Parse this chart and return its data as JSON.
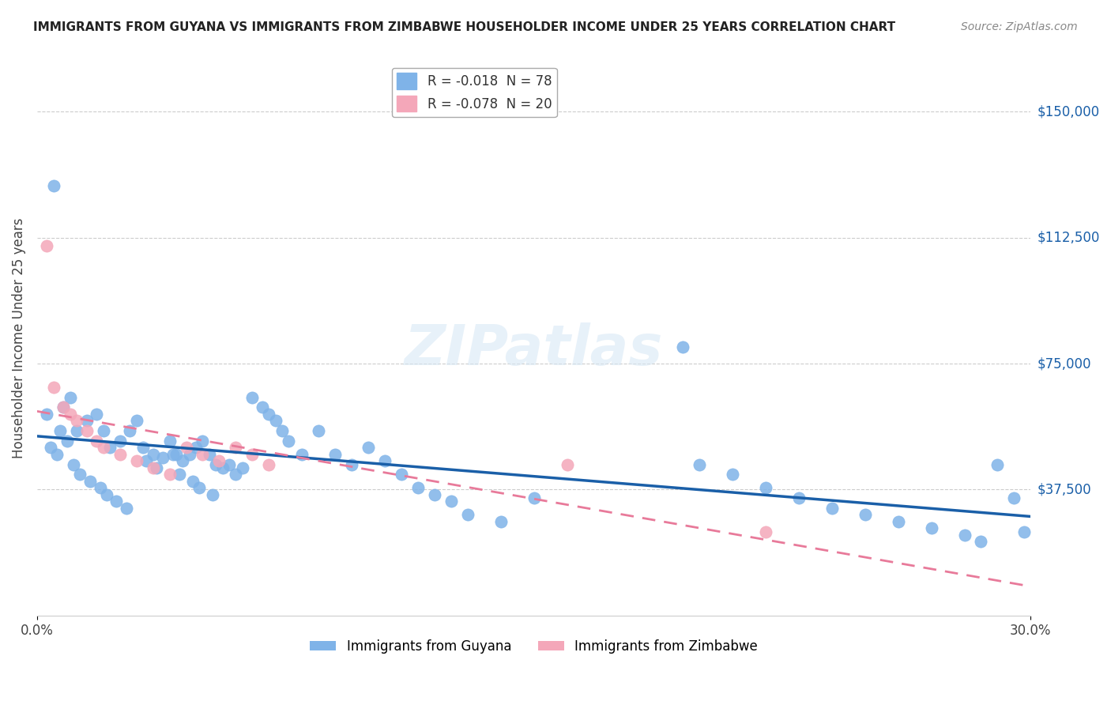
{
  "title": "IMMIGRANTS FROM GUYANA VS IMMIGRANTS FROM ZIMBABWE HOUSEHOLDER INCOME UNDER 25 YEARS CORRELATION CHART",
  "source": "Source: ZipAtlas.com",
  "ylabel": "Householder Income Under 25 years",
  "xlim": [
    0,
    0.3
  ],
  "ylim": [
    0,
    165000
  ],
  "guyana_R": -0.018,
  "guyana_N": 78,
  "zimbabwe_R": -0.078,
  "zimbabwe_N": 20,
  "guyana_color": "#7fb3e8",
  "zimbabwe_color": "#f4a7b9",
  "guyana_line_color": "#1a5fa8",
  "zimbabwe_line_color": "#e87a9a",
  "background_color": "#ffffff",
  "guyana_x": [
    0.005,
    0.008,
    0.01,
    0.012,
    0.015,
    0.018,
    0.02,
    0.022,
    0.025,
    0.028,
    0.03,
    0.032,
    0.035,
    0.038,
    0.04,
    0.042,
    0.044,
    0.046,
    0.048,
    0.05,
    0.052,
    0.054,
    0.056,
    0.058,
    0.06,
    0.062,
    0.065,
    0.068,
    0.07,
    0.072,
    0.074,
    0.076,
    0.08,
    0.085,
    0.09,
    0.095,
    0.1,
    0.105,
    0.11,
    0.115,
    0.12,
    0.125,
    0.13,
    0.14,
    0.15,
    0.195,
    0.2,
    0.21,
    0.22,
    0.23,
    0.24,
    0.25,
    0.26,
    0.27,
    0.28,
    0.285,
    0.29,
    0.295,
    0.298,
    0.003,
    0.004,
    0.006,
    0.007,
    0.009,
    0.011,
    0.013,
    0.016,
    0.019,
    0.021,
    0.024,
    0.027,
    0.033,
    0.036,
    0.041,
    0.043,
    0.047,
    0.049,
    0.053
  ],
  "guyana_y": [
    128000,
    62000,
    65000,
    55000,
    58000,
    60000,
    55000,
    50000,
    52000,
    55000,
    58000,
    50000,
    48000,
    47000,
    52000,
    48000,
    46000,
    48000,
    50000,
    52000,
    48000,
    45000,
    44000,
    45000,
    42000,
    44000,
    65000,
    62000,
    60000,
    58000,
    55000,
    52000,
    48000,
    55000,
    48000,
    45000,
    50000,
    46000,
    42000,
    38000,
    36000,
    34000,
    30000,
    28000,
    35000,
    80000,
    45000,
    42000,
    38000,
    35000,
    32000,
    30000,
    28000,
    26000,
    24000,
    22000,
    45000,
    35000,
    25000,
    60000,
    50000,
    48000,
    55000,
    52000,
    45000,
    42000,
    40000,
    38000,
    36000,
    34000,
    32000,
    46000,
    44000,
    48000,
    42000,
    40000,
    38000,
    36000
  ],
  "zimbabwe_x": [
    0.003,
    0.005,
    0.008,
    0.01,
    0.012,
    0.015,
    0.018,
    0.02,
    0.025,
    0.03,
    0.035,
    0.04,
    0.045,
    0.05,
    0.055,
    0.06,
    0.065,
    0.07,
    0.16,
    0.22
  ],
  "zimbabwe_y": [
    110000,
    68000,
    62000,
    60000,
    58000,
    55000,
    52000,
    50000,
    48000,
    46000,
    44000,
    42000,
    50000,
    48000,
    46000,
    50000,
    48000,
    45000,
    45000,
    25000
  ],
  "ytick_positions": [
    37500,
    75000,
    112500,
    150000
  ],
  "ytick_labels": [
    "$37,500",
    "$75,000",
    "$112,500",
    "$150,000"
  ]
}
